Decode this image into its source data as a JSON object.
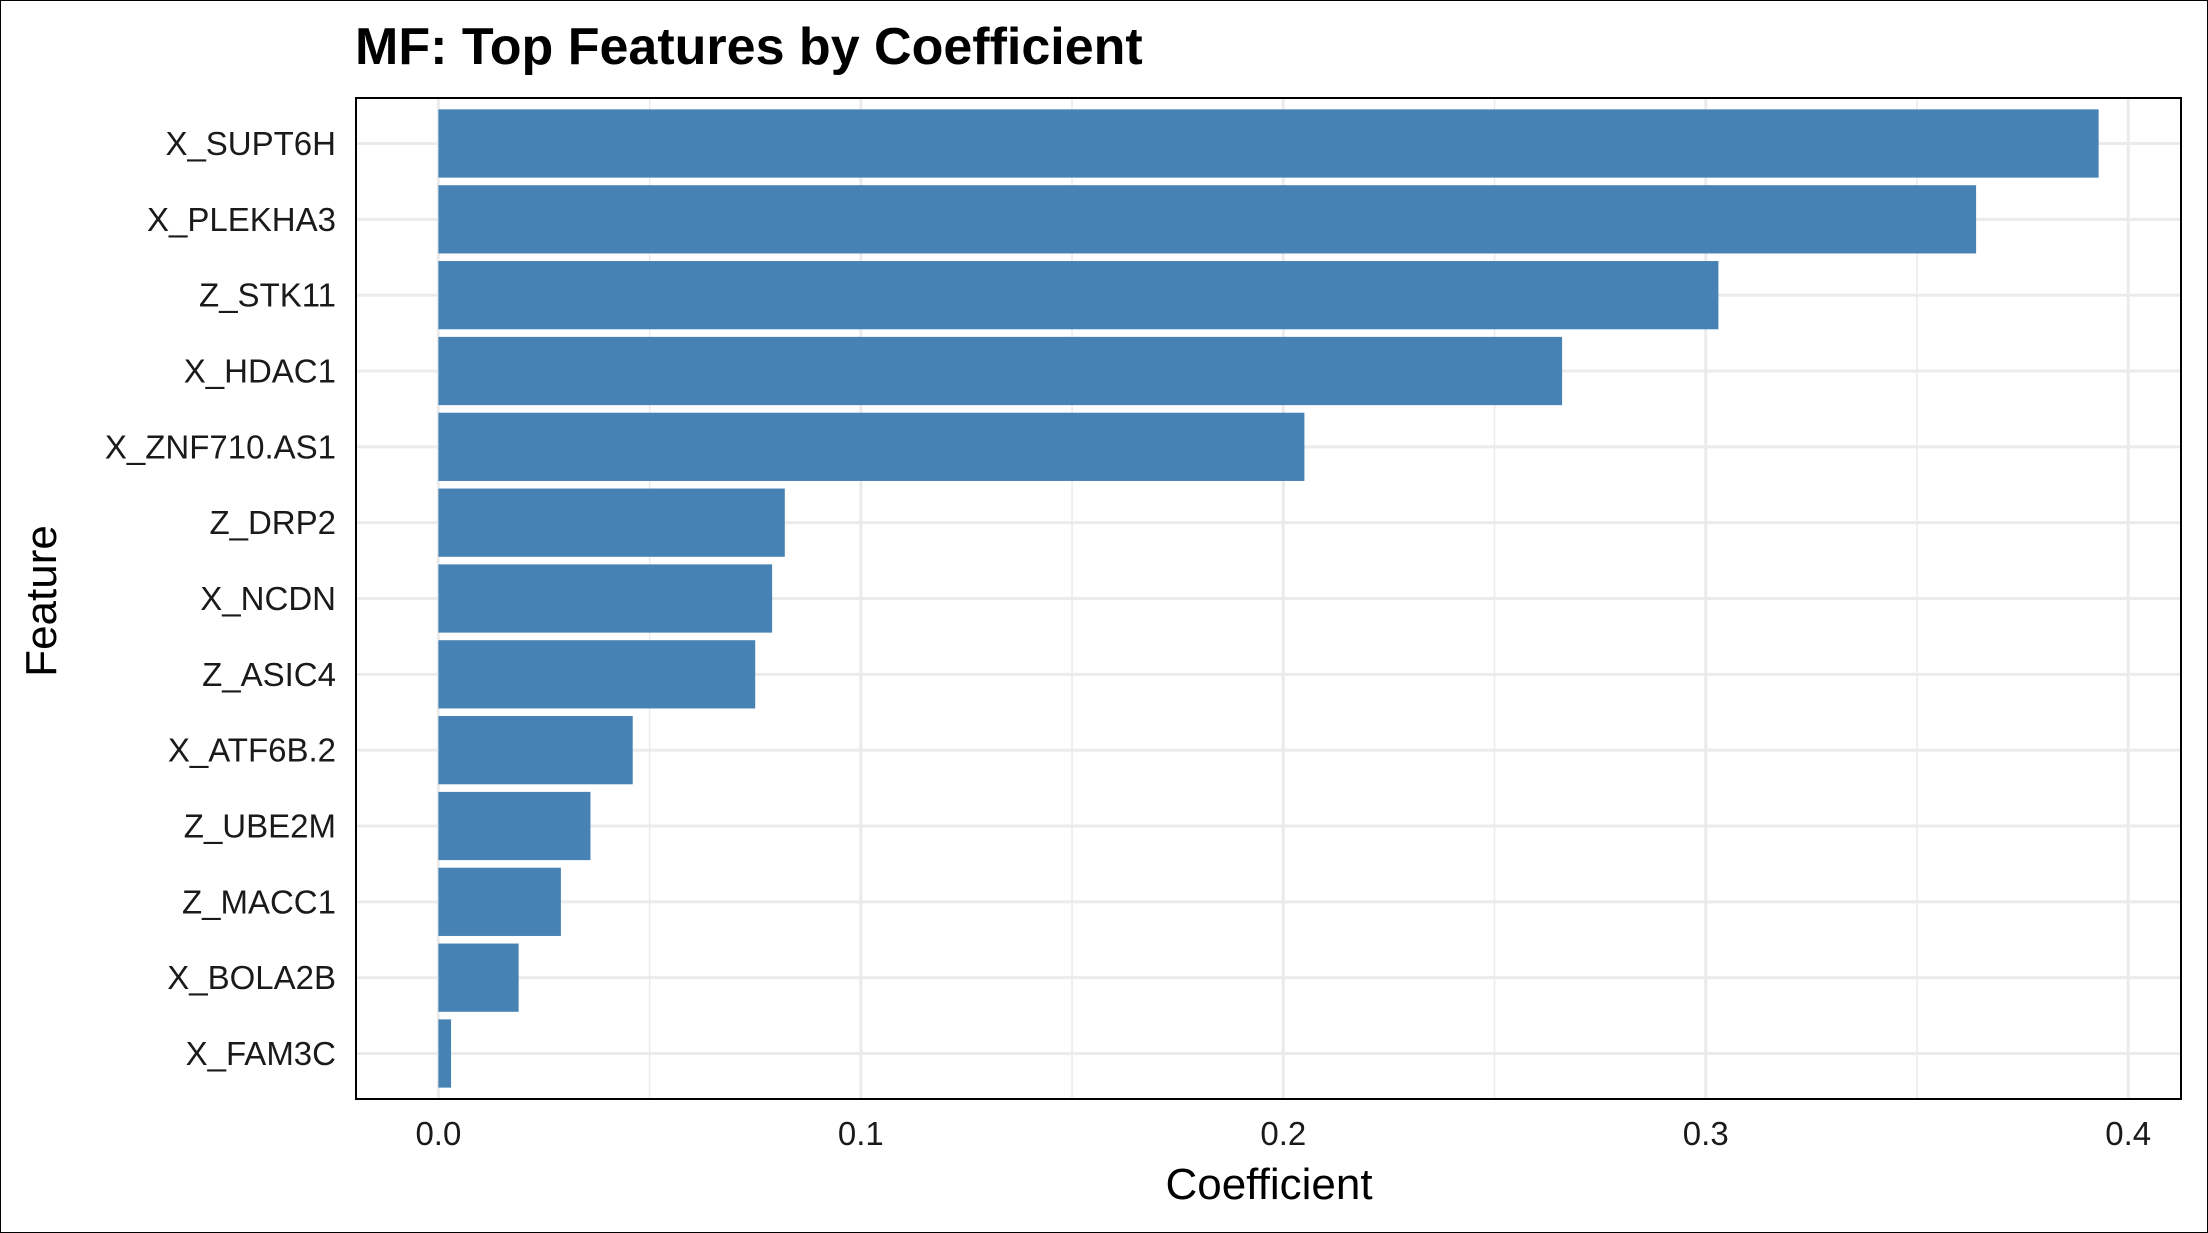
{
  "chart_data": {
    "type": "bar",
    "orientation": "horizontal",
    "title": "MF: Top Features by Coefficient",
    "xlabel": "Coefficient",
    "ylabel": "Feature",
    "categories": [
      "X_SUPT6H",
      "X_PLEKHA3",
      "Z_STK11",
      "X_HDAC1",
      "X_ZNF710.AS1",
      "Z_DRP2",
      "X_NCDN",
      "Z_ASIC4",
      "X_ATF6B.2",
      "Z_UBE2M",
      "Z_MACC1",
      "X_BOLA2B",
      "X_FAM3C"
    ],
    "values": [
      0.393,
      0.364,
      0.303,
      0.266,
      0.205,
      0.082,
      0.079,
      0.075,
      0.046,
      0.036,
      0.029,
      0.019,
      0.003
    ],
    "xlim": [
      -0.0195,
      0.4125
    ],
    "xticks": [
      0.0,
      0.1,
      0.2,
      0.3,
      0.4
    ],
    "xtick_labels": [
      "0.0",
      "0.1",
      "0.2",
      "0.3",
      "0.4"
    ],
    "grid": true,
    "bar_color": "#4682B4",
    "grid_color": "#EBEBEB",
    "panel_border_color": "#000000"
  }
}
